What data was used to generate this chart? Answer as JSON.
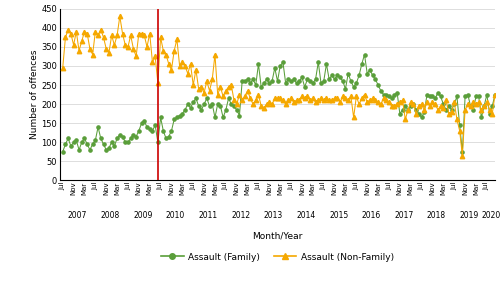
{
  "family": [
    75,
    95,
    110,
    90,
    100,
    105,
    80,
    100,
    110,
    95,
    80,
    95,
    105,
    140,
    110,
    95,
    80,
    85,
    100,
    90,
    110,
    120,
    115,
    100,
    100,
    110,
    120,
    115,
    130,
    150,
    155,
    140,
    135,
    130,
    145,
    100,
    165,
    130,
    110,
    115,
    130,
    160,
    165,
    170,
    175,
    185,
    200,
    190,
    205,
    215,
    195,
    185,
    200,
    215,
    195,
    200,
    165,
    200,
    195,
    165,
    185,
    215,
    200,
    195,
    185,
    170,
    260,
    260,
    265,
    255,
    265,
    250,
    305,
    245,
    255,
    265,
    255,
    260,
    295,
    260,
    300,
    310,
    255,
    265,
    260,
    265,
    255,
    260,
    270,
    245,
    265,
    260,
    255,
    265,
    310,
    255,
    260,
    305,
    265,
    275,
    265,
    275,
    270,
    260,
    240,
    280,
    260,
    245,
    255,
    275,
    305,
    330,
    280,
    290,
    275,
    265,
    250,
    235,
    225,
    225,
    220,
    215,
    225,
    230,
    175,
    185,
    195,
    185,
    195,
    200,
    185,
    175,
    165,
    180,
    225,
    220,
    220,
    215,
    230,
    220,
    200,
    185,
    195,
    185,
    200,
    220,
    145,
    75,
    220,
    225,
    195,
    185,
    220,
    220,
    165,
    195,
    225,
    175,
    195,
    225
  ],
  "nonfamily": [
    295,
    375,
    395,
    385,
    355,
    390,
    340,
    365,
    390,
    385,
    345,
    330,
    390,
    380,
    395,
    375,
    345,
    335,
    380,
    355,
    380,
    430,
    385,
    355,
    350,
    380,
    345,
    325,
    385,
    385,
    380,
    350,
    385,
    310,
    325,
    255,
    375,
    340,
    330,
    305,
    290,
    340,
    370,
    300,
    310,
    300,
    280,
    305,
    250,
    290,
    240,
    245,
    230,
    260,
    235,
    265,
    330,
    225,
    245,
    220,
    235,
    245,
    250,
    210,
    200,
    225,
    210,
    220,
    235,
    215,
    200,
    210,
    225,
    195,
    190,
    200,
    205,
    200,
    215,
    215,
    215,
    210,
    200,
    210,
    215,
    205,
    210,
    210,
    220,
    215,
    220,
    210,
    215,
    205,
    210,
    215,
    210,
    215,
    210,
    210,
    215,
    215,
    205,
    220,
    215,
    210,
    220,
    165,
    220,
    200,
    215,
    225,
    205,
    210,
    215,
    210,
    205,
    200,
    215,
    210,
    205,
    195,
    195,
    200,
    205,
    210,
    160,
    185,
    205,
    200,
    175,
    195,
    200,
    185,
    205,
    195,
    205,
    200,
    185,
    195,
    190,
    210,
    175,
    180,
    205,
    160,
    130,
    65,
    185,
    200,
    195,
    205,
    200,
    205,
    185,
    195,
    205,
    185,
    175,
    225
  ],
  "barring_notice_index": 35,
  "family_color": "#5a9e3a",
  "nonfamily_color": "#f5a800",
  "barring_line_color": "#cc0000",
  "ylabel": "Number of offences",
  "xlabel": "Month/Year",
  "ylim": [
    0,
    450
  ],
  "yticks": [
    0,
    50,
    100,
    150,
    200,
    250,
    300,
    350,
    400,
    450
  ],
  "grid_color": "#d0d0d0",
  "legend_family": "Assault (Family)",
  "legend_nonfamily": "Assault (Non-Family)",
  "year_labels": [
    "2007",
    "2008",
    "2009",
    "2010",
    "2011",
    "2012",
    "2013",
    "2014",
    "2015",
    "2016",
    "2017",
    "2018",
    "2019",
    "2020"
  ]
}
